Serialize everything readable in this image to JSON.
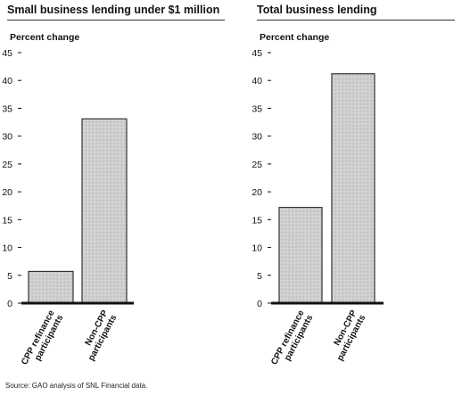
{
  "source": "Source: GAO analysis of SNL Financial data.",
  "colors": {
    "bar_fill": "#cfcfcf",
    "bar_stroke": "#333333",
    "axis": "#111111"
  },
  "chart_data": [
    {
      "type": "bar",
      "title": "Small business lending under $1 million",
      "ylabel": "Percent change",
      "xlabel": "",
      "ylim": [
        0,
        45
      ],
      "yticks": [
        0,
        5,
        10,
        15,
        20,
        25,
        30,
        35,
        40,
        45
      ],
      "categories": [
        "CPP refinance participants",
        "Non-CPP participants"
      ],
      "category_lines": [
        [
          "CPP refinance",
          "participants"
        ],
        [
          "Non-CPP",
          "participants"
        ]
      ],
      "values": [
        5.7,
        33.1
      ],
      "grid": false,
      "legend": "none"
    },
    {
      "type": "bar",
      "title": "Total business lending",
      "ylabel": "Percent change",
      "xlabel": "",
      "ylim": [
        0,
        45
      ],
      "yticks": [
        0,
        5,
        10,
        15,
        20,
        25,
        30,
        35,
        40,
        45
      ],
      "categories": [
        "CPP refinance participants",
        "Non-CPP participants"
      ],
      "category_lines": [
        [
          "CPP refinance",
          "participants"
        ],
        [
          "Non-CPP",
          "participants"
        ]
      ],
      "values": [
        17.2,
        41.2
      ],
      "grid": false,
      "legend": "none"
    }
  ]
}
